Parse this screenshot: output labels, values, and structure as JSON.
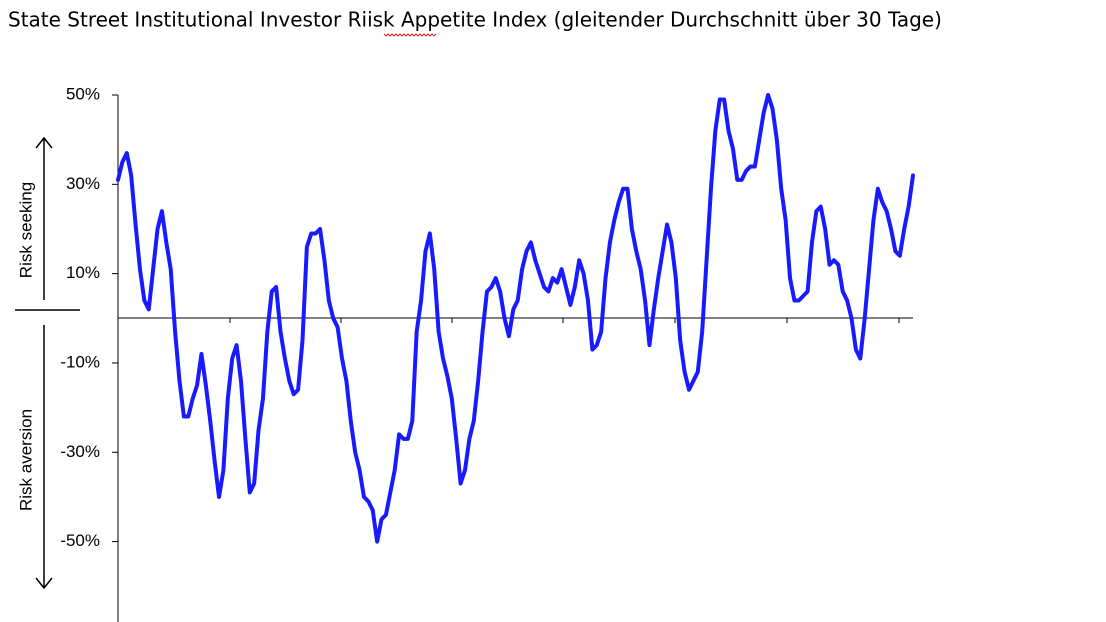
{
  "chart_data": {
    "type": "line",
    "title": "State Street Institutional Investor Riisk Appetite Index (gleitender Durchschnitt über 30 Tage)",
    "annotations": [
      "Risk seeking",
      "Risk aversion"
    ],
    "color": "#1a1aff",
    "ylim": [
      -68,
      50
    ],
    "yticks": [
      {
        "value": 50,
        "label": "50%"
      },
      {
        "value": 30,
        "label": "30%"
      },
      {
        "value": 10,
        "label": "10%"
      },
      {
        "value": -10,
        "label": "-10%"
      },
      {
        "value": -30,
        "label": "-30%"
      },
      {
        "value": -50,
        "label": "-50%"
      }
    ],
    "values": [
      31,
      35,
      37,
      32,
      21,
      11,
      4,
      2,
      11,
      20,
      24,
      17,
      11,
      -3,
      -14,
      -22,
      -22,
      -18,
      -15,
      -8,
      -15,
      -23,
      -32,
      -40,
      -34,
      -18,
      -9,
      -6,
      -14,
      -27,
      -39,
      -37,
      -25,
      -18,
      -3,
      6,
      7,
      -3,
      -9,
      -14,
      -17,
      -16,
      -5,
      16,
      19,
      19,
      20,
      13,
      4,
      0,
      -2,
      -9,
      -14,
      -23,
      -30,
      -34,
      -40,
      -41,
      -43,
      -50,
      -45,
      -44,
      -39,
      -34,
      -26,
      -27,
      -27,
      -23,
      -3,
      4,
      15,
      19,
      11,
      -3,
      -9,
      -13,
      -18,
      -27,
      -37,
      -34,
      -27,
      -23,
      -14,
      -3,
      6,
      7,
      9,
      6,
      0,
      -4,
      2,
      4,
      11,
      15,
      17,
      13,
      10,
      7,
      6,
      9,
      8,
      11,
      7,
      3,
      7,
      13,
      10,
      4,
      -7,
      -6,
      -3,
      9,
      17,
      22,
      26,
      29,
      29,
      20,
      15,
      11,
      4,
      -6,
      2,
      9,
      15,
      21,
      17,
      9,
      -5,
      -12,
      -16,
      -14,
      -12,
      -3,
      13,
      29,
      42,
      49,
      49,
      42,
      38,
      31,
      31,
      33,
      34,
      34,
      40,
      46,
      50,
      47,
      40,
      29,
      22,
      9,
      4,
      4,
      5,
      6,
      17,
      24,
      25,
      20,
      12,
      13,
      12,
      6,
      4,
      0,
      -7,
      -9,
      0,
      11,
      22,
      29,
      26,
      24,
      20,
      15,
      14,
      20,
      25,
      32
    ]
  }
}
